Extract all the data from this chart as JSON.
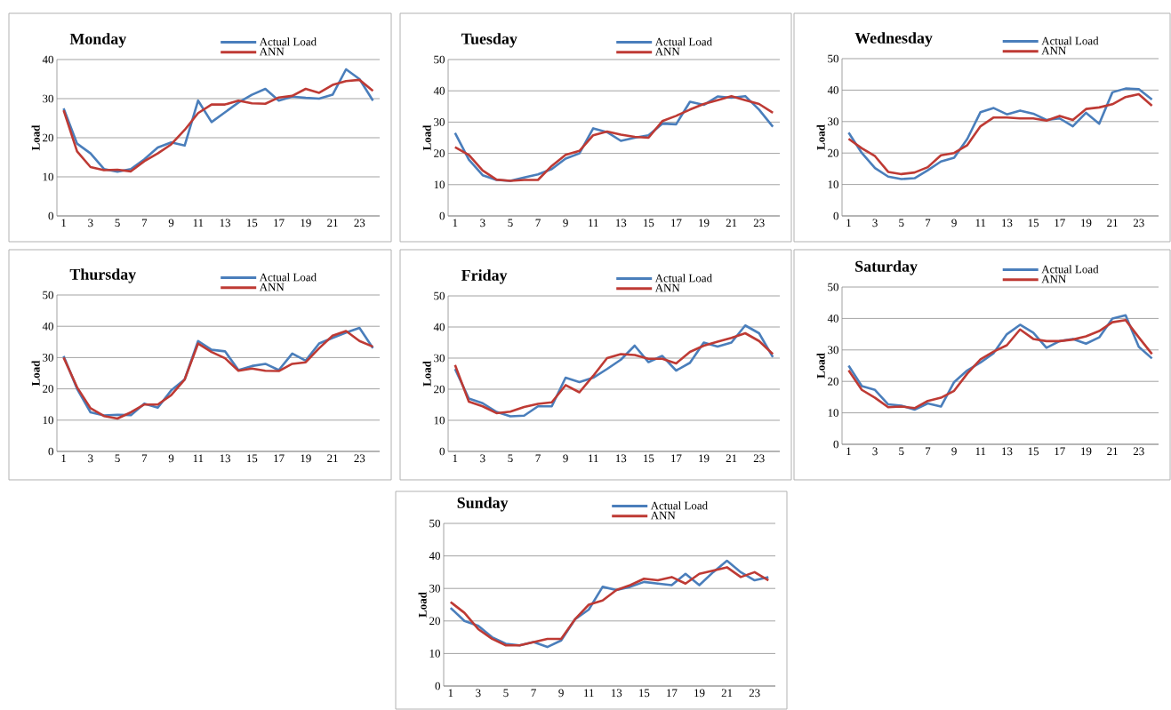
{
  "chart_data": [
    {
      "type": "line",
      "title": "Monday",
      "ylabel": "Load",
      "categories": [
        "1",
        null,
        "3",
        null,
        "5",
        null,
        "7",
        null,
        "9",
        null,
        "11",
        null,
        "13",
        null,
        "15",
        null,
        "17",
        null,
        "19",
        null,
        "21",
        null,
        "23",
        null
      ],
      "ylim": [
        0,
        40
      ],
      "yticks": [
        0,
        10,
        20,
        30,
        40
      ],
      "grid": "y",
      "legend": "top right",
      "series": [
        {
          "name": "Actual Load",
          "color": "#4a7ebb",
          "values": [
            27.5,
            18.5,
            16,
            12,
            11.3,
            12,
            14.5,
            17.5,
            18.8,
            18,
            29.5,
            24,
            26.5,
            29,
            31,
            32.5,
            29.5,
            30.5,
            30.2,
            30,
            31,
            37.5,
            35,
            29.5
          ]
        },
        {
          "name": "ANN",
          "color": "#be3a34",
          "values": [
            27,
            16.5,
            12.5,
            11.7,
            11.8,
            11.4,
            14,
            16,
            18.3,
            22,
            26.3,
            28.5,
            28.5,
            29.5,
            28.8,
            28.7,
            30.3,
            30.7,
            32.5,
            31.5,
            33.5,
            34.5,
            34.8,
            32
          ]
        }
      ]
    },
    {
      "type": "line",
      "title": "Tuesday",
      "ylabel": "Load",
      "categories": [
        "1",
        null,
        "3",
        null,
        "5",
        null,
        "7",
        null,
        "9",
        null,
        "11",
        null,
        "13",
        null,
        "15",
        null,
        "17",
        null,
        "19",
        null,
        "21",
        null,
        "23",
        null
      ],
      "ylim": [
        0,
        50
      ],
      "yticks": [
        0,
        10,
        20,
        30,
        40,
        50
      ],
      "grid": "y",
      "legend": "top right",
      "series": [
        {
          "name": "Actual Load",
          "color": "#4a7ebb",
          "values": [
            26.5,
            18,
            13,
            11.5,
            11.2,
            12.3,
            13.3,
            15,
            18.3,
            20,
            28,
            26.8,
            24,
            25,
            25.8,
            29.5,
            29.3,
            36.5,
            35.5,
            38.2,
            37.8,
            38.3,
            34,
            28.5
          ]
        },
        {
          "name": "ANN",
          "color": "#be3a34",
          "values": [
            22,
            19.5,
            14.5,
            11.6,
            11.2,
            11.5,
            11.5,
            16,
            19.5,
            20.8,
            25.8,
            27,
            26,
            25.3,
            25,
            30.3,
            32,
            34,
            35.8,
            37,
            38.3,
            37,
            35.8,
            33
          ]
        }
      ]
    },
    {
      "type": "line",
      "title": "Wednesday",
      "ylabel": "Load",
      "categories": [
        "1",
        null,
        "3",
        null,
        "5",
        null,
        "7",
        null,
        "9",
        null,
        "11",
        null,
        "13",
        null,
        "15",
        null,
        "17",
        null,
        "19",
        null,
        "21",
        null,
        "23",
        null
      ],
      "ylim": [
        0,
        50
      ],
      "yticks": [
        0,
        10,
        20,
        30,
        40,
        50
      ],
      "grid": "y",
      "legend": "top right",
      "series": [
        {
          "name": "Actual Load",
          "color": "#4a7ebb",
          "values": [
            26.5,
            20,
            15.2,
            12.5,
            11.7,
            12,
            14.5,
            17.3,
            18.5,
            24.5,
            33,
            34.3,
            32.3,
            33.5,
            32.5,
            30.5,
            31,
            28.5,
            32.8,
            29.3,
            39.3,
            40.5,
            40.3,
            37
          ]
        },
        {
          "name": "ANN",
          "color": "#be3a34",
          "values": [
            24.5,
            21.5,
            19,
            14,
            13.3,
            13.8,
            15.5,
            19.3,
            20,
            22.5,
            28.5,
            31.3,
            31.3,
            31,
            31,
            30.3,
            31.8,
            30.5,
            34,
            34.5,
            35.5,
            37.8,
            38.7,
            35
          ]
        }
      ]
    },
    {
      "type": "line",
      "title": "Thursday",
      "ylabel": "Load",
      "categories": [
        "1",
        null,
        "3",
        null,
        "5",
        null,
        "7",
        null,
        "9",
        null,
        "11",
        null,
        "13",
        null,
        "15",
        null,
        "17",
        null,
        "19",
        null,
        "21",
        null,
        "23",
        null
      ],
      "ylim": [
        0,
        50
      ],
      "yticks": [
        0,
        10,
        20,
        30,
        40,
        50
      ],
      "grid": "y",
      "legend": "top right",
      "series": [
        {
          "name": "Actual Load",
          "color": "#4a7ebb",
          "values": [
            30.5,
            20,
            12.5,
            11.5,
            11.7,
            11.6,
            15.3,
            14,
            19.5,
            23,
            35.3,
            32.5,
            32,
            26,
            27.3,
            28,
            26,
            31.3,
            29,
            34.5,
            36.3,
            38,
            39.5,
            33
          ]
        },
        {
          "name": "ANN",
          "color": "#be3a34",
          "values": [
            30,
            20.5,
            13.8,
            11.3,
            10.5,
            12.5,
            15,
            15,
            18,
            23,
            34.5,
            31.8,
            29.8,
            25.8,
            26.5,
            25.8,
            25.7,
            28,
            28.5,
            33,
            37,
            38.5,
            35.3,
            33.5
          ]
        }
      ]
    },
    {
      "type": "line",
      "title": "Friday",
      "ylabel": "Load",
      "categories": [
        "1",
        null,
        "3",
        null,
        "5",
        null,
        "7",
        null,
        "9",
        null,
        "11",
        null,
        "13",
        null,
        "15",
        null,
        "17",
        null,
        "19",
        null,
        "21",
        null,
        "23",
        null
      ],
      "ylim": [
        0,
        50
      ],
      "yticks": [
        0,
        10,
        20,
        30,
        40,
        50
      ],
      "grid": "y",
      "legend": "top right",
      "series": [
        {
          "name": "Actual Load",
          "color": "#4a7ebb",
          "values": [
            26.5,
            17,
            15.5,
            12.7,
            11.3,
            11.5,
            14.5,
            14.5,
            23.7,
            22.3,
            23.7,
            26.5,
            29.5,
            34,
            28.7,
            30.7,
            26,
            28.5,
            35,
            33.7,
            35,
            40.5,
            38,
            30.3
          ]
        },
        {
          "name": "ANN",
          "color": "#be3a34",
          "values": [
            27.8,
            16,
            14.5,
            12.3,
            12.8,
            14.3,
            15.3,
            15.8,
            21.3,
            19,
            24.3,
            30,
            31.3,
            31,
            29.8,
            29.8,
            28.3,
            32,
            34,
            35.3,
            36.5,
            38,
            35.5,
            31.3
          ]
        }
      ]
    },
    {
      "type": "line",
      "title": "Saturday",
      "ylabel": "Load",
      "categories": [
        "1",
        null,
        "3",
        null,
        "5",
        null,
        "7",
        null,
        "9",
        null,
        "11",
        null,
        "13",
        null,
        "15",
        null,
        "17",
        null,
        "19",
        null,
        "21",
        null,
        "23",
        null
      ],
      "ylim": [
        0,
        50
      ],
      "yticks": [
        0,
        10,
        20,
        30,
        40,
        50
      ],
      "grid": "y",
      "legend": "top right",
      "series": [
        {
          "name": "Actual Load",
          "color": "#4a7ebb",
          "values": [
            25,
            18.5,
            17.3,
            12.7,
            12.3,
            11,
            13,
            12,
            19.8,
            23.5,
            26,
            29,
            35,
            38,
            35.5,
            30.7,
            32.8,
            33.5,
            32,
            34,
            40,
            41,
            31,
            27.3
          ]
        },
        {
          "name": "ANN",
          "color": "#be3a34",
          "values": [
            23.5,
            17.3,
            14.8,
            11.8,
            12,
            11.5,
            13.8,
            14.8,
            17,
            22.5,
            27,
            29.5,
            31.5,
            36.5,
            33.5,
            32.8,
            32.8,
            33.3,
            34.3,
            36,
            38.8,
            39.5,
            34,
            28.7
          ]
        }
      ]
    },
    {
      "type": "line",
      "title": "Sunday",
      "ylabel": "Load",
      "categories": [
        "1",
        null,
        "3",
        null,
        "5",
        null,
        "7",
        null,
        "9",
        null,
        "11",
        null,
        "13",
        null,
        "15",
        null,
        "17",
        null,
        "19",
        null,
        "21",
        null,
        "23",
        null
      ],
      "ylim": [
        0,
        50
      ],
      "yticks": [
        0,
        10,
        20,
        30,
        40,
        50
      ],
      "grid": "y",
      "legend": "top right",
      "series": [
        {
          "name": "Actual Load",
          "color": "#4a7ebb",
          "values": [
            24,
            20,
            18.5,
            15,
            13,
            12.5,
            13.5,
            12,
            14,
            20.5,
            23.5,
            30.5,
            29.5,
            30.5,
            32,
            31.5,
            31,
            34.5,
            31,
            35,
            38.5,
            35,
            32.5,
            33.5
          ]
        },
        {
          "name": "ANN",
          "color": "#be3a34",
          "values": [
            25.8,
            22.5,
            17.5,
            14.5,
            12.5,
            12.5,
            13.5,
            14.5,
            14.5,
            20.5,
            25,
            26.3,
            29.5,
            31,
            33,
            32.5,
            33.5,
            31.5,
            34.5,
            35.5,
            36.5,
            33.5,
            35,
            32.5
          ]
        }
      ]
    }
  ]
}
